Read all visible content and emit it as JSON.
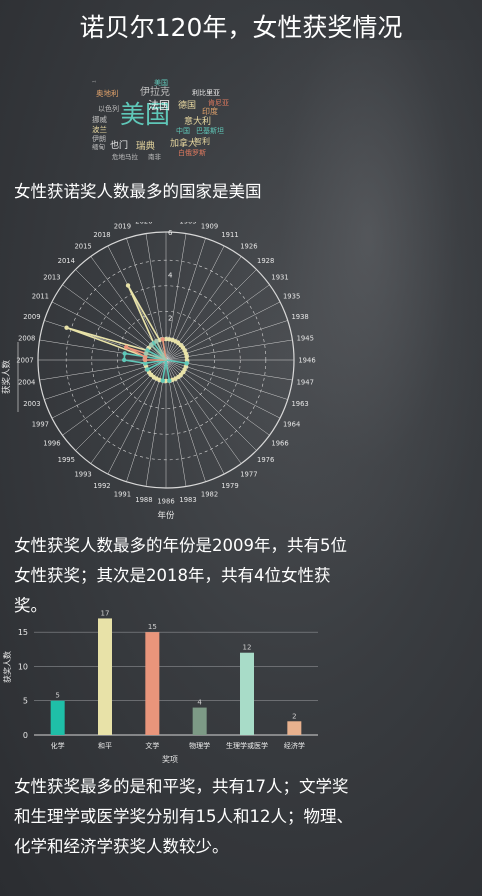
{
  "page": {
    "title": "诺贝尔120年，女性获奖情况"
  },
  "wordcloud": {
    "words": [
      {
        "text": "美国",
        "color": "#5fc7b8"
      },
      {
        "text": "奥地利",
        "color": "#e0a26b"
      },
      {
        "text": "伊拉克",
        "color": "#bfbfbf"
      },
      {
        "text": "利比里亚",
        "color": "#f0f0f0"
      },
      {
        "text": "肯尼亚",
        "color": "#e07a5f"
      },
      {
        "text": "奥匈帝国",
        "color": "#bfbfbf"
      },
      {
        "text": "美国",
        "color": "#5fc7b8"
      },
      {
        "text": "法国",
        "color": "#f0f0f0"
      },
      {
        "text": "德国",
        "color": "#e8d8a0"
      },
      {
        "text": "印度",
        "color": "#e0a26b"
      },
      {
        "text": "以色列",
        "color": "#bfbfbf"
      },
      {
        "text": "挪威",
        "color": "#bfbfbf"
      },
      {
        "text": "意大利",
        "color": "#e8d8a0"
      },
      {
        "text": "波兰",
        "color": "#e8d8a0"
      },
      {
        "text": "中国",
        "color": "#5fc7b8"
      },
      {
        "text": "巴基斯坦",
        "color": "#5fc7b8"
      },
      {
        "text": "伊朗",
        "color": "#bfbfbf"
      },
      {
        "text": "智利",
        "color": "#e8d8a0"
      },
      {
        "text": "缅甸",
        "color": "#bfbfbf"
      },
      {
        "text": "也门",
        "color": "#f0f0f0"
      },
      {
        "text": "瑞典",
        "color": "#e8d8a0"
      },
      {
        "text": "加拿大",
        "color": "#e8d8a0"
      },
      {
        "text": "危地马拉",
        "color": "#bfbfbf"
      },
      {
        "text": "南非",
        "color": "#bfbfbf"
      },
      {
        "text": "白俄罗斯",
        "color": "#e07a5f"
      }
    ]
  },
  "texts": {
    "p1": "女性获诺奖人数最多的国家是美国",
    "p2": "女性获奖人数最多的年份是2009年，共有5位女性获奖；其次是2018年，共有4位女性获奖。",
    "p3": "女性获奖最多的是和平奖，共有17人；文学奖和生理学或医学奖分别有15人和12人；物理、化学和经济学获奖人数较少。"
  },
  "chart_data": [
    {
      "type": "radar",
      "xlabel": "年份",
      "ylabel": "获奖人数",
      "rlim": [
        0,
        6
      ],
      "rticks": [
        "2",
        "4",
        "6"
      ],
      "categories": [
        "1903",
        "1905",
        "1909",
        "1911",
        "1926",
        "1928",
        "1931",
        "1935",
        "1938",
        "1945",
        "1946",
        "1947",
        "1963",
        "1964",
        "1966",
        "1976",
        "1977",
        "1979",
        "1982",
        "1983",
        "1986",
        "1988",
        "1991",
        "1992",
        "1993",
        "1995",
        "1996",
        "1997",
        "2003",
        "2004",
        "2007",
        "2008",
        "2009",
        "2011",
        "2013",
        "2014",
        "2015",
        "2018",
        "2019",
        "2020"
      ],
      "series": [
        {
          "color": "#e8e2a8",
          "values": [
            1,
            1,
            1,
            1,
            1,
            1,
            1,
            1,
            1,
            1,
            1,
            1,
            1,
            1,
            1,
            1,
            1,
            1,
            1,
            1,
            1,
            1,
            1,
            1,
            1,
            1,
            1,
            1,
            1,
            1,
            1,
            1,
            5,
            1,
            1,
            1,
            1,
            4,
            1,
            1
          ]
        },
        {
          "color": "#5fc7b8",
          "values": [
            0,
            0,
            0,
            0,
            0,
            0,
            0,
            0,
            0,
            0,
            0,
            1,
            0,
            0,
            0,
            0,
            0,
            0,
            0,
            1,
            0,
            1,
            0,
            0,
            0,
            0,
            0,
            1,
            0,
            1,
            2,
            2,
            0,
            1,
            0,
            0,
            1,
            0,
            0,
            1
          ]
        },
        {
          "color": "#e9957b",
          "values": [
            0,
            0,
            0,
            0,
            0,
            0,
            0,
            0,
            0,
            0,
            0,
            0,
            0,
            0,
            0,
            0,
            0,
            0,
            0,
            0,
            0,
            0,
            0,
            0,
            0,
            0,
            0,
            0,
            0,
            0,
            1,
            1,
            2,
            0,
            0,
            0,
            0,
            1,
            0,
            1
          ]
        },
        {
          "color": "#9fc8b0",
          "values": [
            0,
            0,
            0,
            0,
            0,
            0,
            0,
            0,
            0,
            0,
            0,
            0,
            0,
            0,
            0,
            0,
            0,
            0,
            0,
            0,
            0,
            0,
            0,
            0,
            0,
            0,
            0,
            0,
            0,
            0,
            0,
            0,
            1,
            0,
            0,
            1,
            0,
            1,
            0,
            0
          ]
        }
      ]
    },
    {
      "type": "bar",
      "xlabel": "奖项",
      "ylabel": "获奖人数",
      "ylim": [
        0,
        17.5
      ],
      "yticks": [
        0,
        5,
        10,
        15
      ],
      "categories": [
        "化学",
        "和平",
        "文学",
        "物理学",
        "生理学或医学",
        "经济学"
      ],
      "values": [
        5,
        17,
        15,
        4,
        12,
        2
      ],
      "colors": [
        "#1fbfa8",
        "#e8e2a8",
        "#e9957b",
        "#7d9a86",
        "#a8dcc8",
        "#e8b18e"
      ]
    }
  ]
}
